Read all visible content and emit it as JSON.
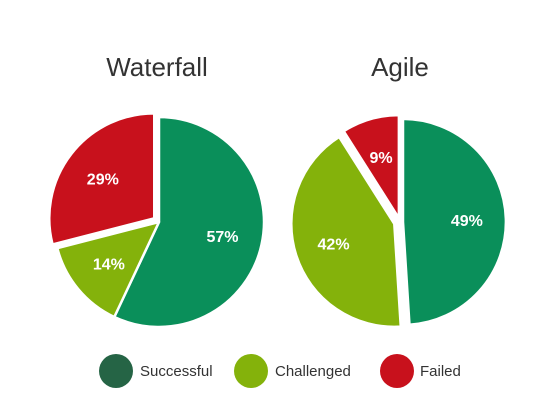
{
  "chart_data": [
    {
      "type": "pie",
      "title": "Waterfall",
      "categories": [
        "Successful",
        "Challenged",
        "Failed"
      ],
      "values": [
        57,
        14,
        29
      ],
      "labels": [
        "57%",
        "14%",
        "29%"
      ],
      "colors": [
        "#0a8f5a",
        "#84b20b",
        "#c8111c"
      ]
    },
    {
      "type": "pie",
      "title": "Agile",
      "categories": [
        "Successful",
        "Challenged",
        "Failed"
      ],
      "values": [
        49,
        42,
        9
      ],
      "labels": [
        "49%",
        "42%",
        "9%"
      ],
      "colors": [
        "#0a8f5a",
        "#84b20b",
        "#c8111c"
      ]
    }
  ],
  "legend": {
    "placement": "bottom",
    "items": [
      {
        "label": "Successful",
        "color": "#256445"
      },
      {
        "label": "Challenged",
        "color": "#84b20b"
      },
      {
        "label": "Failed",
        "color": "#c8111c"
      }
    ]
  }
}
